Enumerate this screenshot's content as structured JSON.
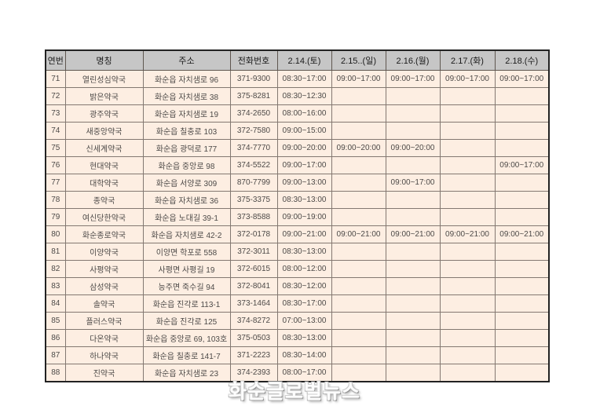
{
  "table": {
    "headers": [
      "연번",
      "명칭",
      "주소",
      "전화번호",
      "2.14.(토)",
      "2.15..(일)",
      "2.16.(월)",
      "2.17.(화)",
      "2.18.(수)"
    ],
    "rows": [
      [
        "71",
        "열린성심약국",
        "화순읍 자치샘로 96",
        "371-9300",
        "08:30~17:00",
        "09:00~17:00",
        "09:00~17:00",
        "09:00~17:00",
        "09:00~17:00"
      ],
      [
        "72",
        "밝은약국",
        "화순읍 자치샘로 38",
        "375-8281",
        "08:30~12:30",
        "",
        "",
        "",
        ""
      ],
      [
        "73",
        "광주약국",
        "화순읍 자치샘로 19",
        "374-2650",
        "08:00~16:00",
        "",
        "",
        "",
        ""
      ],
      [
        "74",
        "새중앙약국",
        "화순읍 칠충로 103",
        "372-7580",
        "09:00~15:00",
        "",
        "",
        "",
        ""
      ],
      [
        "75",
        "신세계약국",
        "화순읍 광덕로 177",
        "374-7770",
        "09:00~20:00",
        "09:00~20:00",
        "09:00~20:00",
        "",
        ""
      ],
      [
        "76",
        "현대약국",
        "화순읍 중앙로 98",
        "374-5522",
        "09:00~17:00",
        "",
        "",
        "",
        "09:00~17:00"
      ],
      [
        "77",
        "대학약국",
        "화순읍 서양로 309",
        "870-7799",
        "09:00~13:00",
        "",
        "09:00~17:00",
        "",
        ""
      ],
      [
        "78",
        "종약국",
        "화순읍 자치샘로 36",
        "375-3375",
        "08:30~13:00",
        "",
        "",
        "",
        ""
      ],
      [
        "79",
        "여신당한약국",
        "화순읍 노대길 39-1",
        "373-8588",
        "09:00~19:00",
        "",
        "",
        "",
        ""
      ],
      [
        "80",
        "화순종로약국",
        "화순읍 자치샘로 42-2",
        "372-0178",
        "09:00~21:00",
        "09:00~21:00",
        "09:00~21:00",
        "09:00~21:00",
        "09:00~21:00"
      ],
      [
        "81",
        "이양약국",
        "이양면 학포로 558",
        "372-3011",
        "08:30~13:00",
        "",
        "",
        "",
        ""
      ],
      [
        "82",
        "사평약국",
        "사평면 사평길 19",
        "372-6015",
        "08:00~12:00",
        "",
        "",
        "",
        ""
      ],
      [
        "83",
        "삼성약국",
        "능주면 죽수길 94",
        "372-8041",
        "08:30~12:00",
        "",
        "",
        "",
        ""
      ],
      [
        "84",
        "솔약국",
        "화순읍 진각로 113-1",
        "373-1464",
        "08:30~17:00",
        "",
        "",
        "",
        ""
      ],
      [
        "85",
        "플러스약국",
        "화순읍 진각로 125",
        "374-8272",
        "07:00~13:00",
        "",
        "",
        "",
        ""
      ],
      [
        "86",
        "다온약국",
        "화순읍 중앙로 69, 103호",
        "375-0503",
        "08:30~13:00",
        "",
        "",
        "",
        ""
      ],
      [
        "87",
        "하나약국",
        "화순읍 칠충로 141-7",
        "371-2223",
        "08:30~14:00",
        "",
        "",
        "",
        ""
      ],
      [
        "88",
        "진약국",
        "화순읍 자치샘로 23",
        "374-2393",
        "08:00~17:00",
        "",
        "",
        "",
        ""
      ]
    ]
  },
  "footer": {
    "logo": "화순글로벌뉴스"
  },
  "colors": {
    "header_bg": "#c6c6c6",
    "row_bg": "#fdeee2",
    "grid_border": "#837871",
    "outer_border": "#222222",
    "logo_fill": "#fdfdfd",
    "logo_shadow": "#9c9c9c"
  }
}
